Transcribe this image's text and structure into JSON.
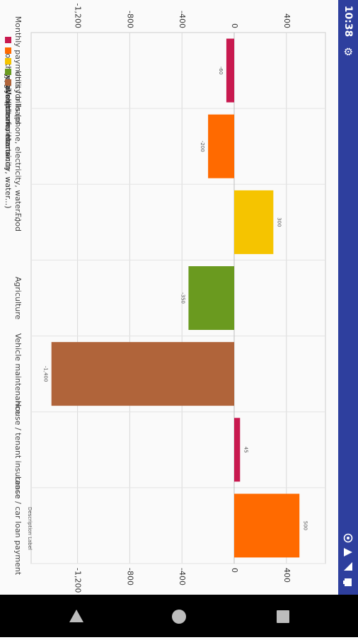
{
  "status_bar": {
    "time": "10:38",
    "icons": [
      "gear-icon",
      "location-icon",
      "wifi-icon",
      "signal-icon",
      "battery-icon"
    ]
  },
  "nav_bar": {
    "buttons": [
      "back-icon",
      "home-icon",
      "recents-icon"
    ]
  },
  "chart_data": {
    "type": "bar",
    "orientation": "horizontal",
    "categories": [
      "Monthly payments for loans",
      "Utility bills (phone, electricity, water...)",
      "Food",
      "Agriculture",
      "Vehicle maintenance",
      "House / tenant insurance",
      "Lease / car loan payment"
    ],
    "values": [
      -60,
      -200,
      300,
      -350,
      -1400,
      45,
      500
    ],
    "data_labels": [
      "-60",
      "-200",
      "300",
      "-350",
      "-1,400",
      "45",
      "500"
    ],
    "colors": [
      "#c8194f",
      "#ff6a00",
      "#f5c400",
      "#6a9a1f",
      "#b0643a",
      "#c8194f",
      "#ff6a00"
    ],
    "value_axis": {
      "range": [
        -1400,
        450
      ],
      "ticks": [
        -1200,
        -800,
        -400,
        0,
        400
      ],
      "tick_labels": [
        "-1,200",
        "-800",
        "-400",
        "0",
        "400"
      ]
    },
    "legend": {
      "placement": "left",
      "entries": [
        {
          "name": "Monthly payments for loans",
          "color": "#c8194f"
        },
        {
          "name": "Utility bills (phone, electricity, water...)",
          "color": "#ff6a00"
        },
        {
          "name": "Food",
          "color": "#f5c400"
        },
        {
          "name": "Agriculture",
          "color": "#6a9a1f"
        },
        {
          "name": "Vehicle maintenance",
          "color": "#b0643a"
        }
      ]
    },
    "description": "Description Label",
    "grid": true
  }
}
